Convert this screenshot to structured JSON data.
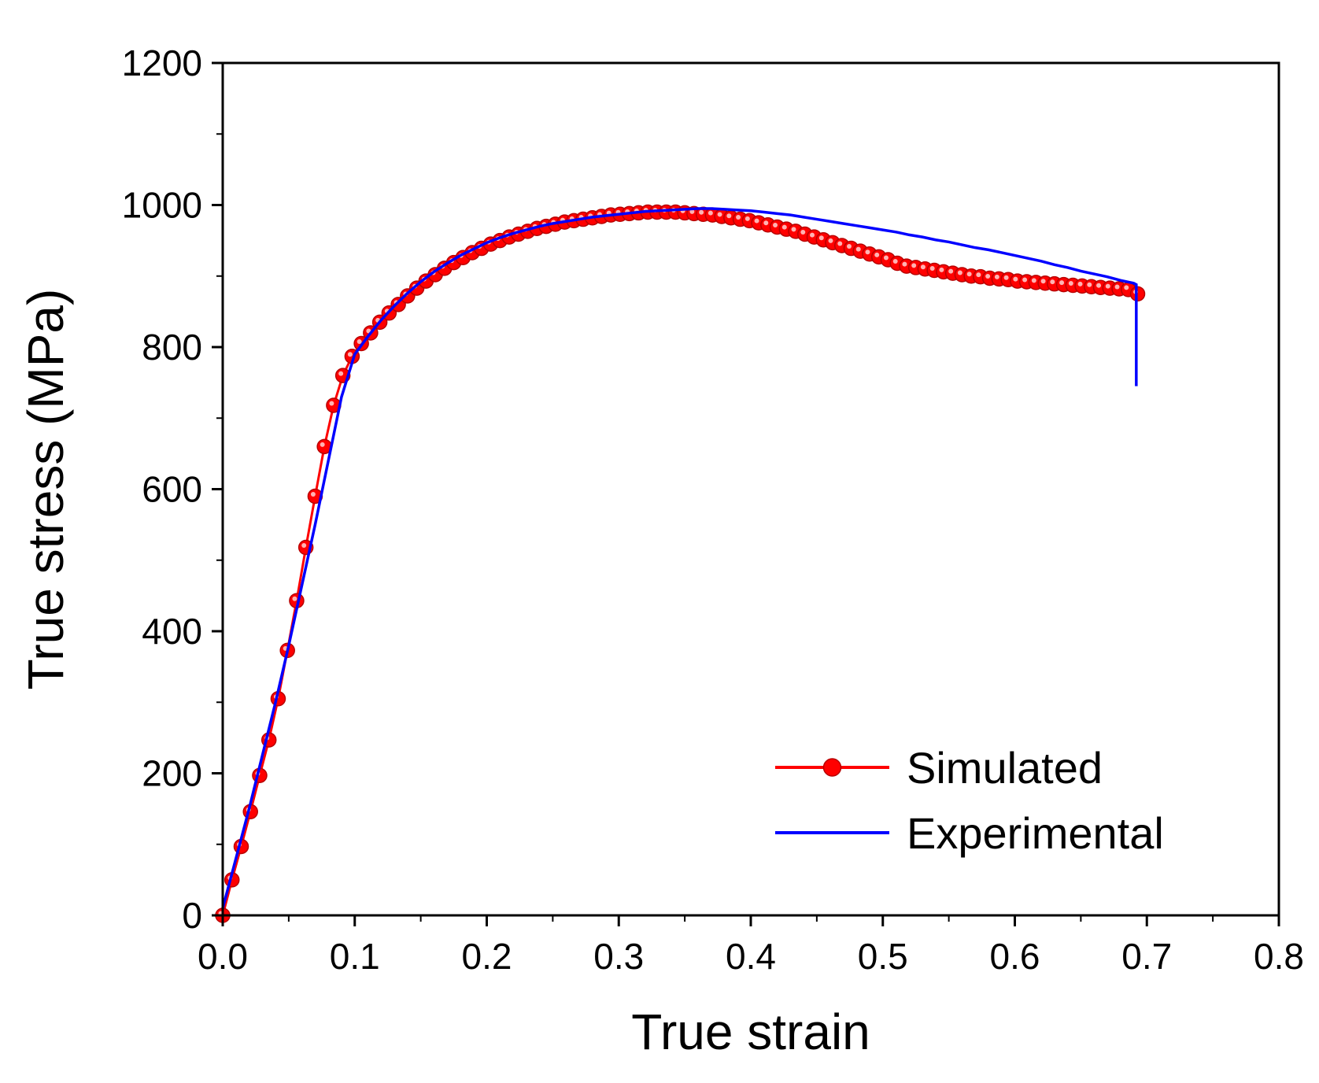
{
  "chart_data": {
    "type": "line",
    "title": "",
    "xlabel": "True strain",
    "ylabel": "True stress (MPa)",
    "xlim": [
      0.0,
      0.8
    ],
    "ylim": [
      0,
      1200
    ],
    "xticks": [
      0.0,
      0.1,
      0.2,
      0.3,
      0.4,
      0.5,
      0.6,
      0.7,
      0.8
    ],
    "xtick_labels": [
      "0.0",
      "0.1",
      "0.2",
      "0.3",
      "0.4",
      "0.5",
      "0.6",
      "0.7",
      "0.8"
    ],
    "yticks": [
      0,
      200,
      400,
      600,
      800,
      1000,
      1200
    ],
    "ytick_labels": [
      "0",
      "200",
      "400",
      "600",
      "800",
      "1000",
      "1200"
    ],
    "grid": false,
    "legend_position": "bottom-right",
    "series": [
      {
        "name": "Simulated",
        "color": "#ff0000",
        "marker": "circle",
        "x": [
          0.0,
          0.007,
          0.014,
          0.021,
          0.028,
          0.035,
          0.042,
          0.049,
          0.056,
          0.063,
          0.07,
          0.077,
          0.084,
          0.091,
          0.098,
          0.105,
          0.112,
          0.119,
          0.126,
          0.133,
          0.14,
          0.147,
          0.154,
          0.161,
          0.168,
          0.175,
          0.182,
          0.189,
          0.196,
          0.203,
          0.21,
          0.217,
          0.224,
          0.231,
          0.238,
          0.245,
          0.252,
          0.259,
          0.266,
          0.273,
          0.28,
          0.287,
          0.294,
          0.301,
          0.308,
          0.315,
          0.322,
          0.329,
          0.336,
          0.343,
          0.35,
          0.357,
          0.364,
          0.371,
          0.378,
          0.385,
          0.392,
          0.399,
          0.406,
          0.413,
          0.42,
          0.427,
          0.434,
          0.441,
          0.448,
          0.455,
          0.462,
          0.469,
          0.476,
          0.483,
          0.49,
          0.497,
          0.504,
          0.511,
          0.518,
          0.525,
          0.532,
          0.539,
          0.546,
          0.553,
          0.56,
          0.567,
          0.574,
          0.581,
          0.588,
          0.595,
          0.602,
          0.609,
          0.616,
          0.623,
          0.63,
          0.637,
          0.644,
          0.651,
          0.658,
          0.665,
          0.672,
          0.679,
          0.686,
          0.693
        ],
        "y": [
          0,
          50,
          97,
          146,
          197,
          247,
          305,
          373,
          443,
          518,
          590,
          660,
          718,
          760,
          787,
          805,
          820,
          835,
          848,
          860,
          872,
          883,
          893,
          902,
          911,
          919,
          926,
          933,
          939,
          945,
          950,
          955,
          959,
          963,
          967,
          970,
          973,
          976,
          978,
          980,
          982,
          984,
          986,
          987,
          988,
          989,
          990,
          990,
          990,
          990,
          989,
          988,
          987,
          986,
          984,
          982,
          980,
          978,
          975,
          972,
          969,
          966,
          963,
          959,
          955,
          951,
          947,
          943,
          939,
          935,
          931,
          927,
          923,
          918,
          914,
          912,
          910,
          908,
          906,
          904,
          902,
          900,
          899,
          897,
          896,
          895,
          893,
          892,
          891,
          890,
          889,
          888,
          887,
          886,
          885,
          884,
          883,
          882,
          881,
          875
        ]
      },
      {
        "name": "Experimental",
        "color": "#0000ff",
        "marker": "none",
        "x": [
          0.0,
          0.01,
          0.02,
          0.03,
          0.04,
          0.05,
          0.06,
          0.07,
          0.08,
          0.09,
          0.1,
          0.11,
          0.12,
          0.13,
          0.14,
          0.15,
          0.16,
          0.17,
          0.18,
          0.19,
          0.2,
          0.21,
          0.22,
          0.23,
          0.24,
          0.25,
          0.26,
          0.27,
          0.28,
          0.29,
          0.3,
          0.31,
          0.32,
          0.33,
          0.34,
          0.35,
          0.36,
          0.37,
          0.38,
          0.39,
          0.4,
          0.41,
          0.42,
          0.43,
          0.44,
          0.45,
          0.46,
          0.47,
          0.48,
          0.49,
          0.5,
          0.51,
          0.52,
          0.53,
          0.54,
          0.55,
          0.56,
          0.57,
          0.58,
          0.59,
          0.6,
          0.61,
          0.62,
          0.63,
          0.64,
          0.65,
          0.66,
          0.67,
          0.68,
          0.69,
          0.692,
          0.692
        ],
        "y": [
          10,
          80,
          150,
          225,
          300,
          380,
          465,
          550,
          640,
          730,
          790,
          815,
          838,
          858,
          876,
          892,
          906,
          918,
          929,
          938,
          947,
          954,
          960,
          965,
          970,
          974,
          977,
          980,
          983,
          985,
          987,
          989,
          991,
          992,
          993,
          994,
          995,
          995,
          994,
          993,
          992,
          990,
          988,
          986,
          983,
          980,
          977,
          974,
          971,
          968,
          965,
          962,
          958,
          955,
          951,
          948,
          944,
          940,
          937,
          933,
          929,
          925,
          921,
          916,
          912,
          907,
          903,
          899,
          894,
          890,
          888,
          745
        ]
      }
    ]
  }
}
